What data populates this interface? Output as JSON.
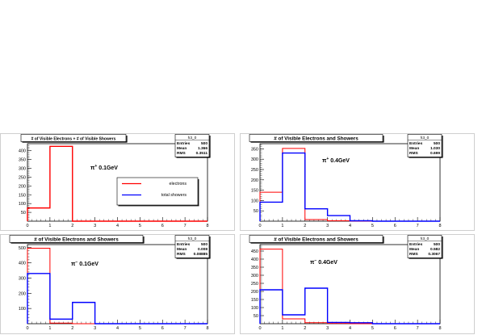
{
  "chart_data": [
    {
      "type": "bar",
      "title": "# of Visible Electrons + # of Visible Showers",
      "annotation": "π⁺ 0.1GeV",
      "annotation_parts": {
        "symbol": "π",
        "sup": "+",
        "energy": "0.1GeV"
      },
      "stats": {
        "name": "h3_0",
        "rows": [
          {
            "label": "Entries",
            "value": "500"
          },
          {
            "label": "Mean",
            "value": "1.366"
          },
          {
            "label": "RMS",
            "value": "0.3511"
          }
        ]
      },
      "xlim": [
        0,
        8
      ],
      "ylim": [
        0,
        440
      ],
      "x_ticks": [
        0,
        1,
        2,
        3,
        4,
        5,
        6,
        7,
        8
      ],
      "y_ticks": [
        50,
        100,
        150,
        200,
        250,
        300,
        350,
        400
      ],
      "bins": [
        0,
        1,
        2,
        3,
        4,
        5,
        6,
        7
      ],
      "series": [
        {
          "name": "",
          "color": "#ff0000",
          "values": [
            75,
            425,
            0,
            0,
            0,
            0,
            0,
            0
          ]
        }
      ],
      "legend": {
        "placement": "center-right",
        "entries": [
          {
            "label": "electrons",
            "color": "#ff0000"
          },
          {
            "label": "total showers",
            "color": "#0000ff"
          }
        ]
      }
    },
    {
      "type": "bar",
      "title": "# of Visible Electrons and Showers",
      "annotation": "π⁺ 0.4GeV",
      "annotation_parts": {
        "symbol": "π",
        "sup": "+",
        "energy": "0.4GeV"
      },
      "stats": {
        "name": "h3_0",
        "rows": [
          {
            "label": "Entries",
            "value": "500"
          },
          {
            "label": "Mean",
            "value": "1.030"
          },
          {
            "label": "RMS",
            "value": "0.699"
          }
        ]
      },
      "xlim": [
        0,
        8
      ],
      "ylim": [
        0,
        375
      ],
      "x_ticks": [
        0,
        1,
        2,
        3,
        4,
        5,
        6,
        7,
        8
      ],
      "y_ticks": [
        50,
        100,
        150,
        200,
        250,
        300,
        350
      ],
      "bins": [
        0,
        1,
        2,
        3,
        4,
        5,
        6,
        7
      ],
      "series": [
        {
          "name": "electrons",
          "color": "#ff0000",
          "values": [
            140,
            352,
            8,
            2,
            0,
            0,
            0,
            0
          ]
        },
        {
          "name": "total showers",
          "color": "#0000ff",
          "values": [
            92,
            330,
            60,
            27,
            2,
            0,
            0,
            0
          ]
        }
      ]
    },
    {
      "type": "bar",
      "title": "# of Visible Electrons and Showers",
      "annotation": "π⁻ 0.1GeV",
      "annotation_parts": {
        "symbol": "π",
        "sup": "−",
        "energy": "0.1GeV"
      },
      "stats": {
        "name": "h3_0",
        "rows": [
          {
            "label": "Entries",
            "value": "500"
          },
          {
            "label": "Mean",
            "value": "0.008"
          },
          {
            "label": "RMS",
            "value": "0.08885"
          }
        ]
      },
      "xlim": [
        0,
        8
      ],
      "ylim": [
        0,
        520
      ],
      "x_ticks": [
        0,
        1,
        2,
        3,
        4,
        5,
        6,
        7,
        8
      ],
      "y_ticks": [
        100,
        200,
        300,
        400,
        500
      ],
      "bins": [
        0,
        1,
        2,
        3,
        4,
        5,
        6,
        7
      ],
      "series": [
        {
          "name": "electrons",
          "color": "#ff0000",
          "values": [
            496,
            4,
            0,
            0,
            0,
            0,
            0,
            0
          ]
        },
        {
          "name": "total showers",
          "color": "#0000ff",
          "values": [
            330,
            30,
            140,
            0,
            0,
            0,
            0,
            0
          ]
        }
      ]
    },
    {
      "type": "bar",
      "title": "# of Visible Electrons and Showers",
      "annotation": "π⁻ 0.4GeV",
      "annotation_parts": {
        "symbol": "π",
        "sup": "−",
        "energy": "0.4GeV"
      },
      "stats": {
        "name": "h3_0",
        "rows": [
          {
            "label": "Entries",
            "value": "500"
          },
          {
            "label": "Mean",
            "value": "0.582"
          },
          {
            "label": "RMS",
            "value": "0.3067"
          }
        ]
      },
      "xlim": [
        0,
        8
      ],
      "ylim": [
        0,
        490
      ],
      "x_ticks": [
        0,
        1,
        2,
        3,
        4,
        5,
        6,
        7,
        8
      ],
      "y_ticks": [
        50,
        100,
        150,
        200,
        250,
        300,
        350,
        400,
        450
      ],
      "bins": [
        0,
        1,
        2,
        3,
        4,
        5,
        6,
        7
      ],
      "series": [
        {
          "name": "electrons",
          "color": "#ff0000",
          "values": [
            462,
            30,
            6,
            2,
            0,
            0,
            0,
            0
          ]
        },
        {
          "name": "total showers",
          "color": "#0000ff",
          "values": [
            210,
            55,
            220,
            8,
            6,
            0,
            0,
            0
          ]
        }
      ]
    }
  ]
}
